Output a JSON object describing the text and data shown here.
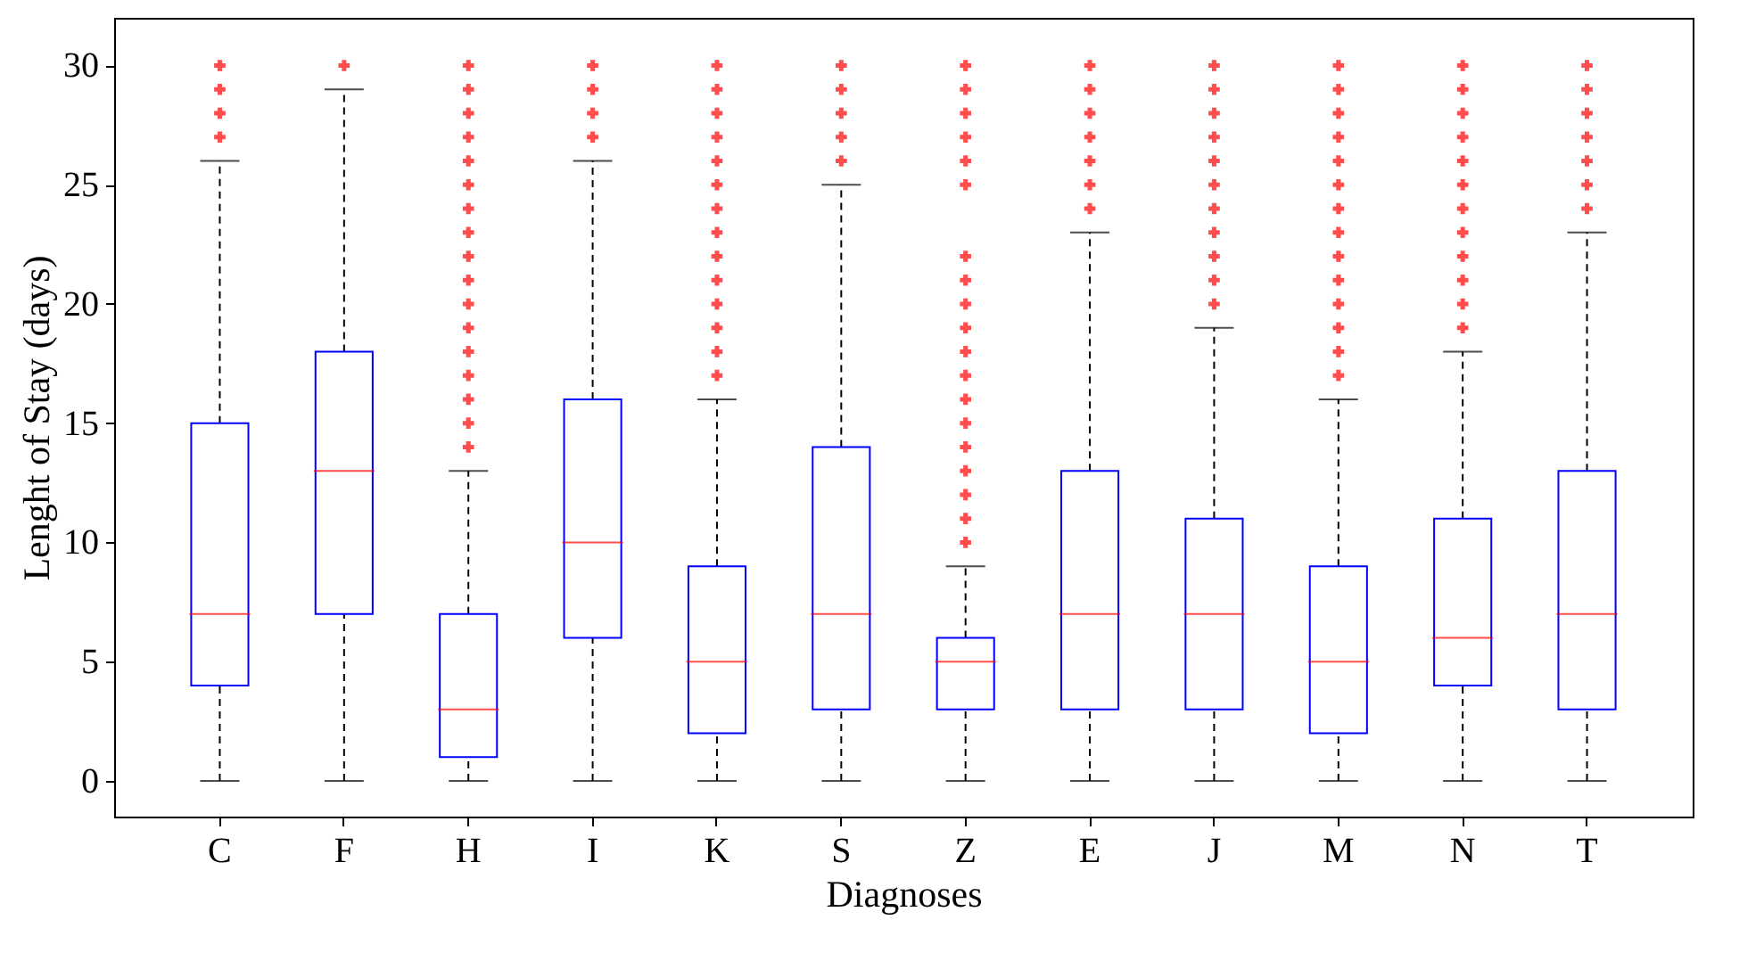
{
  "chart_data": {
    "type": "box",
    "xlabel": "Diagnoses",
    "ylabel": "Lenght of Stay (days)",
    "categories": [
      "C",
      "F",
      "H",
      "I",
      "K",
      "S",
      "Z",
      "E",
      "J",
      "M",
      "N",
      "T"
    ],
    "color": "#0000ff",
    "boxes": [
      {
        "low": 0,
        "q1": 4,
        "median": 7,
        "q3": 15,
        "high": 26,
        "outliers": [
          27,
          28,
          29,
          30
        ]
      },
      {
        "low": 0,
        "q1": 7,
        "median": 13,
        "q3": 18,
        "high": 29,
        "outliers": [
          30
        ]
      },
      {
        "low": 0,
        "q1": 1,
        "median": 3,
        "q3": 7,
        "high": 13,
        "outliers": [
          14,
          15,
          16,
          17,
          18,
          19,
          20,
          21,
          22,
          23,
          24,
          25,
          26,
          27,
          28,
          29,
          30
        ]
      },
      {
        "low": 0,
        "q1": 6,
        "median": 10,
        "q3": 16,
        "high": 26,
        "outliers": [
          27,
          28,
          29,
          30
        ]
      },
      {
        "low": 0,
        "q1": 2,
        "median": 5,
        "q3": 9,
        "high": 16,
        "outliers": [
          17,
          18,
          19,
          20,
          21,
          22,
          23,
          24,
          25,
          26,
          27,
          28,
          29,
          30
        ]
      },
      {
        "low": 0,
        "q1": 3,
        "median": 7,
        "q3": 14,
        "high": 25,
        "outliers": [
          26,
          27,
          28,
          29,
          30
        ]
      },
      {
        "low": 0,
        "q1": 3,
        "median": 5,
        "q3": 6,
        "high": 9,
        "outliers": [
          10,
          11,
          12,
          13,
          14,
          15,
          16,
          17,
          18,
          19,
          20,
          21,
          22,
          25,
          26,
          27,
          28,
          29,
          30
        ]
      },
      {
        "low": 0,
        "q1": 3,
        "median": 7,
        "q3": 13,
        "high": 23,
        "outliers": [
          24,
          25,
          26,
          27,
          28,
          29,
          30
        ]
      },
      {
        "low": 0,
        "q1": 3,
        "median": 7,
        "q3": 11,
        "high": 19,
        "outliers": [
          20,
          21,
          22,
          23,
          24,
          25,
          26,
          27,
          28,
          29,
          30
        ]
      },
      {
        "low": 0,
        "q1": 2,
        "median": 5,
        "q3": 9,
        "high": 16,
        "outliers": [
          17,
          18,
          19,
          20,
          21,
          22,
          23,
          24,
          25,
          26,
          27,
          28,
          29,
          30
        ]
      },
      {
        "low": 0,
        "q1": 4,
        "median": 6,
        "q3": 11,
        "high": 18,
        "outliers": [
          19,
          20,
          21,
          22,
          23,
          24,
          25,
          26,
          27,
          28,
          29,
          30
        ]
      },
      {
        "low": 0,
        "q1": 3,
        "median": 7,
        "q3": 13,
        "high": 23,
        "outliers": [
          24,
          25,
          26,
          27,
          28,
          29,
          30
        ]
      }
    ],
    "ylim": [
      -1.5,
      32
    ],
    "yticks": [
      0,
      5,
      10,
      15,
      20,
      25,
      30
    ],
    "grid": false,
    "marker": "cross"
  }
}
